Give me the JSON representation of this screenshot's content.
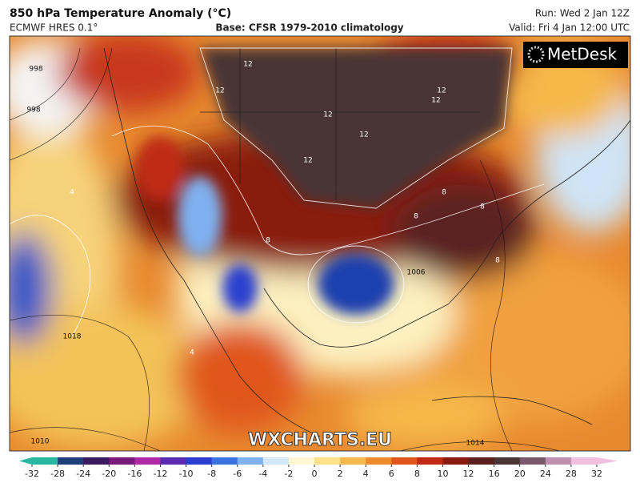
{
  "header": {
    "title": "850 hPa Temperature Anomaly (°C)",
    "model": "ECMWF HRES 0.1°",
    "base": "Base: CFSR 1979-2010 climatology",
    "run": "Run: Wed 2 Jan 12Z",
    "valid": "Valid: Fri 4 Jan 12:00 UTC"
  },
  "brand": "MetDesk",
  "watermark": "WXCHARTS.EU",
  "anomaly_labels": [
    12,
    12,
    12,
    12,
    12,
    12,
    12,
    8,
    8,
    8,
    8,
    8,
    4,
    4
  ],
  "isobar_labels": [
    998,
    998,
    1018,
    1010,
    1014,
    1006
  ],
  "colorbar": {
    "ticks": [
      -32,
      -28,
      -24,
      -20,
      -16,
      -12,
      -10,
      -8,
      -6,
      -4,
      -2,
      0,
      2,
      4,
      6,
      8,
      10,
      12,
      16,
      20,
      24,
      28,
      32
    ],
    "colors": [
      "#2ab7a0",
      "#1d3f7a",
      "#3a1a5e",
      "#7a1a7a",
      "#b02aa6",
      "#5a2bb0",
      "#2a3fcf",
      "#3b73e0",
      "#7fb0f0",
      "#d0e8f8",
      "#fff8d0",
      "#fde28a",
      "#f6b84a",
      "#ef8a2a",
      "#e0561c",
      "#c02a14",
      "#8a1a10",
      "#5a2020",
      "#4a3535",
      "#7a5a6a",
      "#c090b0",
      "#f0c0e0"
    ]
  }
}
